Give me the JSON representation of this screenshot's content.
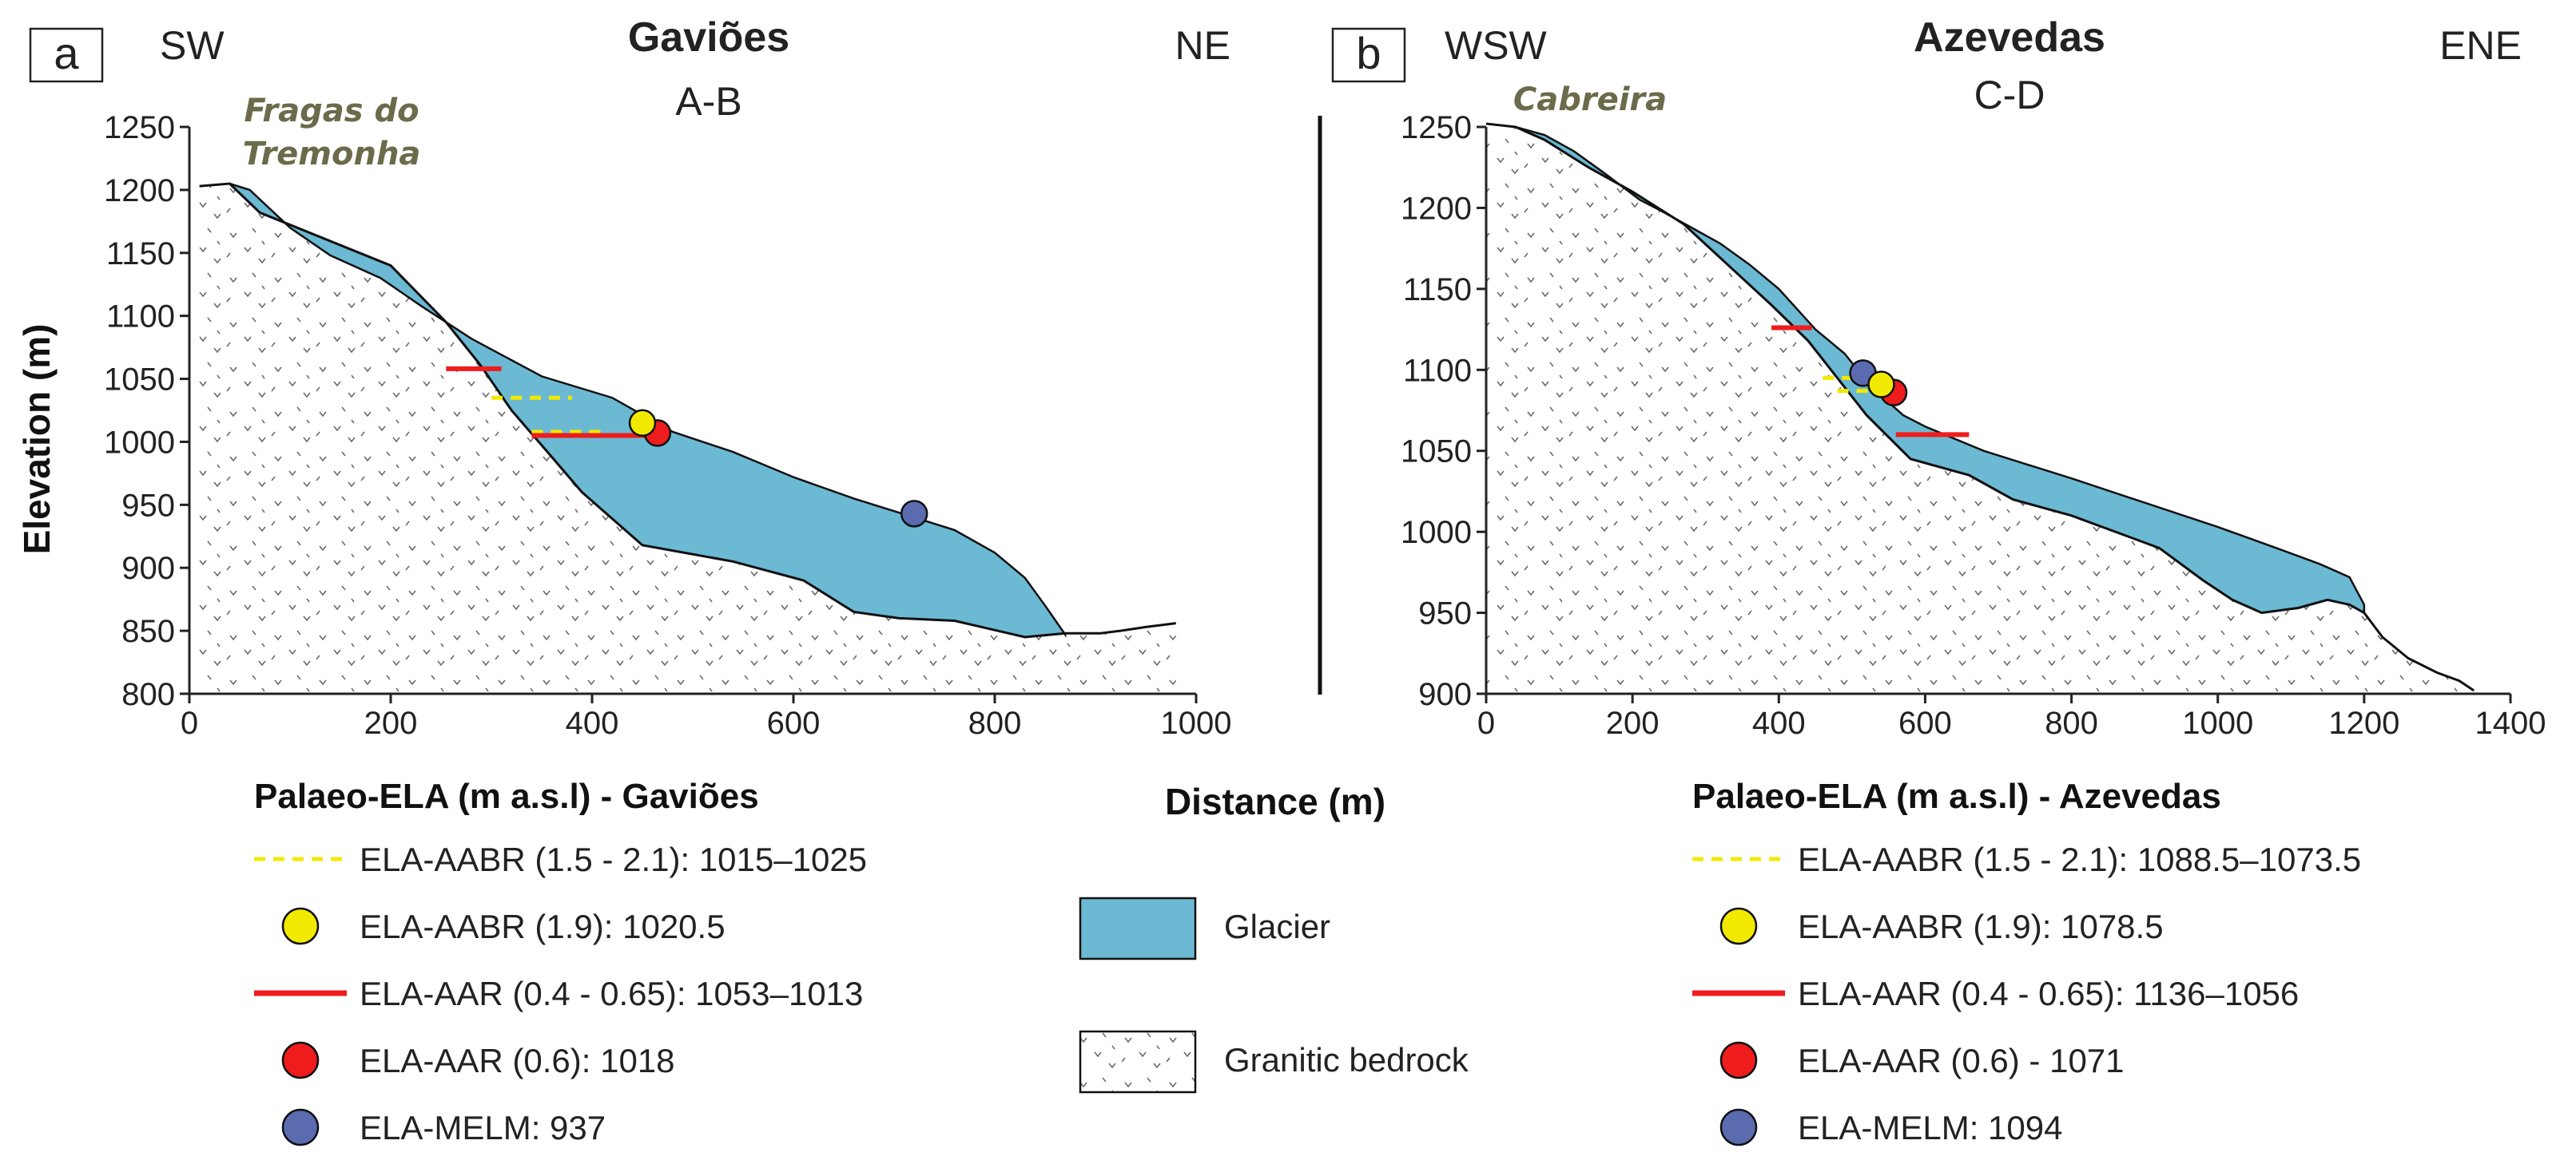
{
  "colors": {
    "glacier": "#6cb9d4",
    "aabr": "#f2e900",
    "aar": "#ee1c1c",
    "melm": "#5a6bb0",
    "outline": "#111111",
    "bedrock_mark": "#6a6a6a",
    "place_text": "#6b6a4a"
  },
  "shared": {
    "xlabel": "Distance (m)",
    "ylabel": "Elevation (m)",
    "legend_glacier": "Glacier",
    "legend_bedrock": "Granitic bedrock"
  },
  "chart_data": [
    {
      "type": "area",
      "panel_label": "a",
      "title": "Gaviões",
      "subtitle": "A-B",
      "dir_left": "SW",
      "dir_right": "NE",
      "place_label_lines": [
        "Fragas do",
        "Tremonha"
      ],
      "xlim": [
        0,
        1000
      ],
      "ylim": [
        800,
        1250
      ],
      "xticks": [
        0,
        200,
        400,
        600,
        800,
        1000
      ],
      "yticks": [
        800,
        850,
        900,
        950,
        1000,
        1050,
        1100,
        1150,
        1200,
        1250
      ],
      "bedrock_top": [
        [
          10,
          1203
        ],
        [
          40,
          1205
        ],
        [
          70,
          1182
        ],
        [
          200,
          1140
        ],
        [
          255,
          1095
        ],
        [
          290,
          1060
        ],
        [
          320,
          1025
        ],
        [
          360,
          988
        ],
        [
          390,
          960
        ],
        [
          450,
          918
        ],
        [
          540,
          905
        ],
        [
          610,
          890
        ],
        [
          660,
          865
        ],
        [
          705,
          860
        ],
        [
          760,
          858
        ],
        [
          830,
          845
        ],
        [
          870,
          848
        ],
        [
          905,
          848
        ],
        [
          925,
          850
        ],
        [
          950,
          853
        ],
        [
          980,
          856
        ]
      ],
      "glacier_top": [
        [
          40,
          1205
        ],
        [
          60,
          1200
        ],
        [
          100,
          1170
        ],
        [
          140,
          1148
        ],
        [
          190,
          1130
        ],
        [
          230,
          1108
        ],
        [
          280,
          1082
        ],
        [
          350,
          1052
        ],
        [
          420,
          1035
        ],
        [
          480,
          1008
        ],
        [
          540,
          992
        ],
        [
          600,
          972
        ],
        [
          660,
          955
        ],
        [
          700,
          945
        ],
        [
          760,
          930
        ],
        [
          800,
          912
        ],
        [
          830,
          892
        ],
        [
          850,
          870
        ],
        [
          870,
          847
        ]
      ],
      "glacier_bottom_from": 40,
      "glacier_bottom_to": 870,
      "aar_lines": [
        {
          "x1": 255,
          "x2": 310,
          "y": 1058
        },
        {
          "x1": 340,
          "x2": 460,
          "y": 1005
        }
      ],
      "aabr_lines": [
        {
          "x1": 300,
          "x2": 380,
          "y": 1035
        },
        {
          "x1": 340,
          "x2": 410,
          "y": 1008
        }
      ],
      "aabr_point": {
        "x": 450,
        "y": 1015
      },
      "aar_point": {
        "x": 465,
        "y": 1007
      },
      "melm_point": {
        "x": 720,
        "y": 943
      },
      "legend_title": "Palaeo-ELA (m a.s.l) - Gaviões",
      "legend": [
        {
          "symbol": "dash",
          "color_key": "aabr",
          "label": "ELA-AABR (1.5 - 2.1): 1015–1025"
        },
        {
          "symbol": "circle",
          "color_key": "aabr",
          "label": "ELA-AABR (1.9): 1020.5"
        },
        {
          "symbol": "line",
          "color_key": "aar",
          "label": "ELA-AAR (0.4 - 0.65): 1053–1013"
        },
        {
          "symbol": "circle",
          "color_key": "aar",
          "label": "ELA-AAR (0.6): 1018"
        },
        {
          "symbol": "circle",
          "color_key": "melm",
          "label": "ELA-MELM: 937"
        }
      ]
    },
    {
      "type": "area",
      "panel_label": "b",
      "title": "Azevedas",
      "subtitle": "C-D",
      "dir_left": "WSW",
      "dir_right": "ENE",
      "place_label_lines": [
        "Cabreira"
      ],
      "xlim": [
        0,
        1400
      ],
      "ylim": [
        900,
        1250
      ],
      "xticks": [
        0,
        200,
        400,
        600,
        800,
        1000,
        1200,
        1400
      ],
      "yticks": [
        900,
        950,
        1000,
        1050,
        1100,
        1150,
        1200,
        1250
      ],
      "bedrock_top": [
        [
          0,
          1252
        ],
        [
          40,
          1250
        ],
        [
          80,
          1242
        ],
        [
          140,
          1225
        ],
        [
          200,
          1210
        ],
        [
          270,
          1190
        ],
        [
          330,
          1165
        ],
        [
          390,
          1140
        ],
        [
          440,
          1118
        ],
        [
          480,
          1095
        ],
        [
          520,
          1072
        ],
        [
          580,
          1045
        ],
        [
          660,
          1035
        ],
        [
          720,
          1020
        ],
        [
          800,
          1010
        ],
        [
          860,
          1000
        ],
        [
          920,
          990
        ],
        [
          980,
          970
        ],
        [
          1020,
          958
        ],
        [
          1060,
          950
        ],
        [
          1110,
          953
        ],
        [
          1150,
          958
        ],
        [
          1180,
          955
        ],
        [
          1200,
          950
        ],
        [
          1225,
          935
        ],
        [
          1260,
          922
        ],
        [
          1300,
          913
        ],
        [
          1330,
          908
        ],
        [
          1350,
          902
        ]
      ],
      "glacier_top": [
        [
          40,
          1250
        ],
        [
          80,
          1245
        ],
        [
          120,
          1235
        ],
        [
          160,
          1222
        ],
        [
          210,
          1205
        ],
        [
          240,
          1198
        ],
        [
          280,
          1188
        ],
        [
          320,
          1178
        ],
        [
          360,
          1165
        ],
        [
          400,
          1150
        ],
        [
          450,
          1125
        ],
        [
          490,
          1110
        ],
        [
          520,
          1093
        ],
        [
          545,
          1082
        ],
        [
          570,
          1072
        ],
        [
          600,
          1065
        ],
        [
          680,
          1050
        ],
        [
          800,
          1033
        ],
        [
          920,
          1015
        ],
        [
          1000,
          1003
        ],
        [
          1080,
          990
        ],
        [
          1140,
          980
        ],
        [
          1180,
          972
        ],
        [
          1200,
          955
        ]
      ],
      "glacier_bottom_from": 40,
      "glacier_bottom_to": 1200,
      "aar_lines": [
        {
          "x1": 390,
          "x2": 445,
          "y": 1126
        },
        {
          "x1": 560,
          "x2": 660,
          "y": 1060
        }
      ],
      "aabr_lines": [
        {
          "x1": 460,
          "x2": 525,
          "y": 1095
        },
        {
          "x1": 480,
          "x2": 540,
          "y": 1087
        }
      ],
      "aabr_point": {
        "x": 540,
        "y": 1091
      },
      "aar_point": {
        "x": 557,
        "y": 1086
      },
      "melm_point": {
        "x": 515,
        "y": 1098
      },
      "legend_title": "Palaeo-ELA (m a.s.l) - Azevedas",
      "legend": [
        {
          "symbol": "dash",
          "color_key": "aabr",
          "label": "ELA-AABR (1.5 - 2.1): 1088.5–1073.5"
        },
        {
          "symbol": "circle",
          "color_key": "aabr",
          "label": "ELA-AABR (1.9): 1078.5"
        },
        {
          "symbol": "line",
          "color_key": "aar",
          "label": "ELA-AAR (0.4 - 0.65): 1136–1056"
        },
        {
          "symbol": "circle",
          "color_key": "aar",
          "label": "ELA-AAR (0.6) - 1071"
        },
        {
          "symbol": "circle",
          "color_key": "melm",
          "label": "ELA-MELM: 1094"
        }
      ]
    }
  ]
}
